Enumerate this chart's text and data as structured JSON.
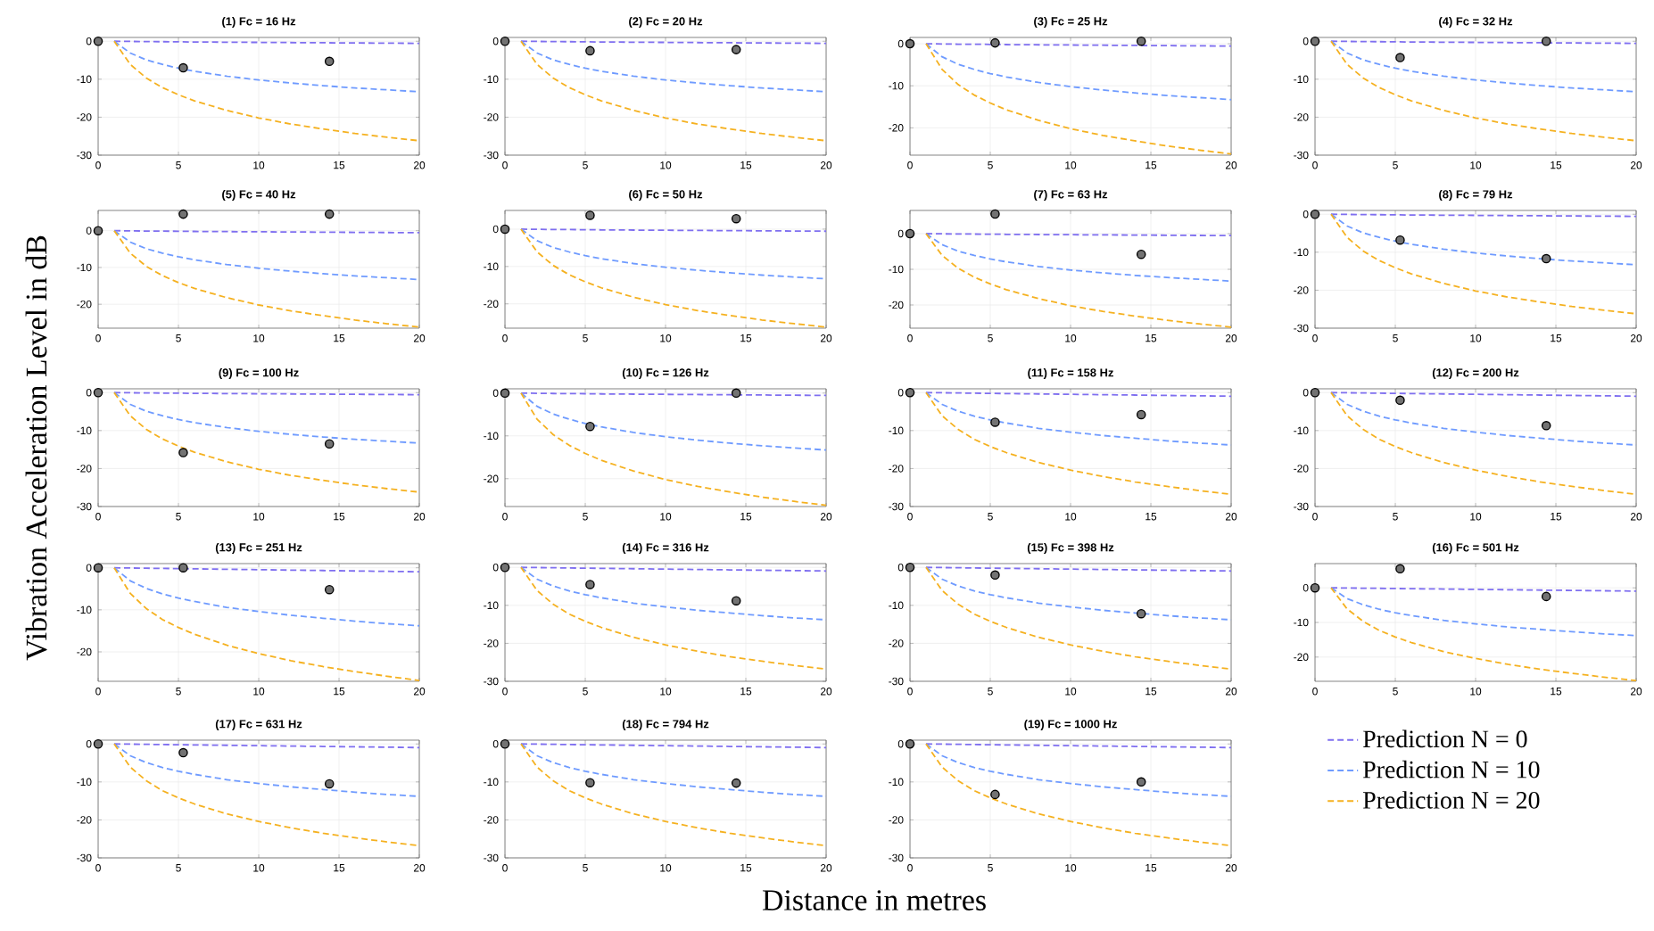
{
  "chart_data": [
    {
      "type": "line",
      "title": "(1) Fc = 16 Hz",
      "xlim": [
        0,
        20
      ],
      "xticks": [
        0,
        5,
        10,
        15,
        20
      ],
      "ylim": [
        -30,
        1
      ],
      "yticks": [
        -30,
        -20,
        -10,
        0
      ],
      "grid": true,
      "x": [
        1,
        2,
        3,
        4,
        5,
        6,
        8,
        10,
        12,
        14,
        16,
        18,
        20
      ],
      "series": [
        {
          "color": "#7f6ff0",
          "line_style": "dashed",
          "values": [
            0,
            -0.05,
            -0.1,
            -0.12,
            -0.15,
            -0.2,
            -0.25,
            -0.3,
            -0.35,
            -0.4,
            -0.45,
            -0.5,
            -0.55
          ]
        },
        {
          "color": "#6f9bff",
          "line_style": "dashed",
          "values": [
            0,
            -3.1,
            -4.9,
            -6.1,
            -7.1,
            -7.9,
            -9.2,
            -10.2,
            -11,
            -11.7,
            -12.3,
            -12.8,
            -13.3
          ]
        },
        {
          "color": "#f5b120",
          "line_style": "dashed",
          "values": [
            0,
            -6.1,
            -9.7,
            -12.2,
            -14.1,
            -15.7,
            -18.2,
            -20.2,
            -21.8,
            -23.1,
            -24.3,
            -25.3,
            -26.2
          ]
        },
        {
          "type": "scatter",
          "marker": "circle",
          "color": "#000000",
          "x": [
            0,
            5.3,
            14.4
          ],
          "values": [
            0,
            -7,
            -5.3
          ]
        }
      ]
    },
    {
      "type": "line",
      "title": "(2) Fc = 20 Hz",
      "xlim": [
        0,
        20
      ],
      "xticks": [
        0,
        5,
        10,
        15,
        20
      ],
      "ylim": [
        -30,
        1
      ],
      "yticks": [
        -30,
        -20,
        -10,
        0
      ],
      "grid": true,
      "x": [
        1,
        2,
        3,
        4,
        5,
        6,
        8,
        10,
        12,
        14,
        16,
        18,
        20
      ],
      "series": [
        {
          "color": "#7f6ff0",
          "line_style": "dashed",
          "values": [
            0,
            -0.05,
            -0.1,
            -0.12,
            -0.15,
            -0.2,
            -0.25,
            -0.3,
            -0.35,
            -0.4,
            -0.45,
            -0.5,
            -0.55
          ]
        },
        {
          "color": "#6f9bff",
          "line_style": "dashed",
          "values": [
            0,
            -3.1,
            -4.9,
            -6.1,
            -7.1,
            -7.9,
            -9.2,
            -10.2,
            -11,
            -11.7,
            -12.3,
            -12.8,
            -13.3
          ]
        },
        {
          "color": "#f5b120",
          "line_style": "dashed",
          "values": [
            0,
            -6.1,
            -9.7,
            -12.2,
            -14.1,
            -15.7,
            -18.2,
            -20.2,
            -21.8,
            -23.1,
            -24.3,
            -25.3,
            -26.2
          ]
        },
        {
          "type": "scatter",
          "marker": "circle",
          "color": "#000000",
          "x": [
            0,
            5.3,
            14.4
          ],
          "values": [
            0,
            -2.5,
            -2.2
          ]
        }
      ]
    },
    {
      "type": "line",
      "title": "(3) Fc = 25 Hz",
      "xlim": [
        0,
        20
      ],
      "xticks": [
        0,
        5,
        10,
        15,
        20
      ],
      "ylim": [
        -26.5,
        1.5
      ],
      "yticks": [
        -20,
        -10,
        0
      ],
      "grid": true,
      "x": [
        1,
        2,
        3,
        4,
        5,
        6,
        8,
        10,
        12,
        14,
        16,
        18,
        20
      ],
      "series": [
        {
          "color": "#7f6ff0",
          "line_style": "dashed",
          "values": [
            0,
            -0.05,
            -0.1,
            -0.12,
            -0.15,
            -0.2,
            -0.25,
            -0.3,
            -0.35,
            -0.4,
            -0.45,
            -0.5,
            -0.55
          ]
        },
        {
          "color": "#6f9bff",
          "line_style": "dashed",
          "values": [
            0,
            -3.1,
            -4.9,
            -6.1,
            -7.1,
            -7.9,
            -9.2,
            -10.2,
            -11,
            -11.7,
            -12.3,
            -12.8,
            -13.3
          ]
        },
        {
          "color": "#f5b120",
          "line_style": "dashed",
          "values": [
            0,
            -6.1,
            -9.7,
            -12.2,
            -14.1,
            -15.7,
            -18.2,
            -20.2,
            -21.8,
            -23.1,
            -24.3,
            -25.3,
            -26.2
          ]
        },
        {
          "type": "scatter",
          "marker": "circle",
          "color": "#000000",
          "x": [
            0,
            5.3,
            14.4
          ],
          "values": [
            0,
            0.2,
            0.6
          ]
        }
      ]
    },
    {
      "type": "line",
      "title": "(4) Fc = 32 Hz",
      "xlim": [
        0,
        20
      ],
      "xticks": [
        0,
        5,
        10,
        15,
        20
      ],
      "ylim": [
        -30,
        1
      ],
      "yticks": [
        -30,
        -20,
        -10,
        0
      ],
      "grid": true,
      "x": [
        1,
        2,
        3,
        4,
        5,
        6,
        8,
        10,
        12,
        14,
        16,
        18,
        20
      ],
      "series": [
        {
          "color": "#7f6ff0",
          "line_style": "dashed",
          "values": [
            0,
            -0.05,
            -0.1,
            -0.12,
            -0.15,
            -0.2,
            -0.25,
            -0.3,
            -0.35,
            -0.4,
            -0.45,
            -0.5,
            -0.55
          ]
        },
        {
          "color": "#6f9bff",
          "line_style": "dashed",
          "values": [
            0,
            -3.1,
            -4.9,
            -6.1,
            -7.1,
            -7.9,
            -9.2,
            -10.2,
            -11,
            -11.7,
            -12.3,
            -12.8,
            -13.3
          ]
        },
        {
          "color": "#f5b120",
          "line_style": "dashed",
          "values": [
            0,
            -6.1,
            -9.7,
            -12.2,
            -14.1,
            -15.7,
            -18.2,
            -20.2,
            -21.8,
            -23.1,
            -24.3,
            -25.3,
            -26.2
          ]
        },
        {
          "type": "scatter",
          "marker": "circle",
          "color": "#000000",
          "x": [
            0,
            5.3,
            14.4
          ],
          "values": [
            0,
            -4.3,
            0
          ]
        }
      ]
    },
    {
      "type": "line",
      "title": "(5) Fc = 40 Hz",
      "xlim": [
        0,
        20
      ],
      "xticks": [
        0,
        5,
        10,
        15,
        20
      ],
      "ylim": [
        -26.5,
        5.5
      ],
      "yticks": [
        -20,
        -10,
        0
      ],
      "grid": true,
      "x": [
        1,
        2,
        3,
        4,
        5,
        6,
        8,
        10,
        12,
        14,
        16,
        18,
        20
      ],
      "series": [
        {
          "color": "#7f6ff0",
          "line_style": "dashed",
          "values": [
            0,
            -0.05,
            -0.1,
            -0.12,
            -0.15,
            -0.2,
            -0.25,
            -0.3,
            -0.35,
            -0.4,
            -0.45,
            -0.5,
            -0.55
          ]
        },
        {
          "color": "#6f9bff",
          "line_style": "dashed",
          "values": [
            0,
            -3.1,
            -4.9,
            -6.1,
            -7.1,
            -7.9,
            -9.2,
            -10.2,
            -11,
            -11.7,
            -12.3,
            -12.8,
            -13.3
          ]
        },
        {
          "color": "#f5b120",
          "line_style": "dashed",
          "values": [
            0,
            -6.1,
            -9.7,
            -12.2,
            -14.1,
            -15.7,
            -18.2,
            -20.2,
            -21.8,
            -23.1,
            -24.3,
            -25.3,
            -26.2
          ]
        },
        {
          "type": "scatter",
          "marker": "circle",
          "color": "#000000",
          "x": [
            0,
            5.3,
            14.4
          ],
          "values": [
            0,
            4.5,
            4.5
          ]
        }
      ]
    },
    {
      "type": "line",
      "title": "(6) Fc = 50 Hz",
      "xlim": [
        0,
        20
      ],
      "xticks": [
        0,
        5,
        10,
        15,
        20
      ],
      "ylim": [
        -26.5,
        5
      ],
      "yticks": [
        -20,
        -10,
        0
      ],
      "grid": true,
      "x": [
        1,
        2,
        3,
        4,
        5,
        6,
        8,
        10,
        12,
        14,
        16,
        18,
        20
      ],
      "series": [
        {
          "color": "#7f6ff0",
          "line_style": "dashed",
          "values": [
            0,
            -0.05,
            -0.1,
            -0.12,
            -0.15,
            -0.2,
            -0.25,
            -0.3,
            -0.35,
            -0.4,
            -0.45,
            -0.5,
            -0.55
          ]
        },
        {
          "color": "#6f9bff",
          "line_style": "dashed",
          "values": [
            0,
            -3.1,
            -4.9,
            -6.1,
            -7.1,
            -7.9,
            -9.2,
            -10.2,
            -11,
            -11.7,
            -12.3,
            -12.8,
            -13.3
          ]
        },
        {
          "color": "#f5b120",
          "line_style": "dashed",
          "values": [
            0,
            -6.1,
            -9.7,
            -12.2,
            -14.1,
            -15.7,
            -18.2,
            -20.2,
            -21.8,
            -23.1,
            -24.3,
            -25.3,
            -26.2
          ]
        },
        {
          "type": "scatter",
          "marker": "circle",
          "color": "#000000",
          "x": [
            0,
            5.3,
            14.4
          ],
          "values": [
            0,
            3.7,
            2.8
          ]
        }
      ]
    },
    {
      "type": "line",
      "title": "(7) Fc = 63 Hz",
      "xlim": [
        0,
        20
      ],
      "xticks": [
        0,
        5,
        10,
        15,
        20
      ],
      "ylim": [
        -26.5,
        6.5
      ],
      "yticks": [
        -20,
        -10,
        0
      ],
      "grid": true,
      "x": [
        1,
        2,
        3,
        4,
        5,
        6,
        8,
        10,
        12,
        14,
        16,
        18,
        20
      ],
      "series": [
        {
          "color": "#7f6ff0",
          "line_style": "dashed",
          "values": [
            0,
            -0.05,
            -0.1,
            -0.12,
            -0.15,
            -0.2,
            -0.25,
            -0.3,
            -0.35,
            -0.4,
            -0.45,
            -0.5,
            -0.55
          ]
        },
        {
          "color": "#6f9bff",
          "line_style": "dashed",
          "values": [
            0,
            -3.1,
            -4.9,
            -6.1,
            -7.1,
            -7.9,
            -9.2,
            -10.2,
            -11,
            -11.7,
            -12.3,
            -12.8,
            -13.3
          ]
        },
        {
          "color": "#f5b120",
          "line_style": "dashed",
          "values": [
            0,
            -6.1,
            -9.7,
            -12.2,
            -14.1,
            -15.7,
            -18.2,
            -20.2,
            -21.8,
            -23.1,
            -24.3,
            -25.3,
            -26.2
          ]
        },
        {
          "type": "scatter",
          "marker": "circle",
          "color": "#000000",
          "x": [
            0,
            5.3,
            14.4
          ],
          "values": [
            0,
            5.5,
            -5.8
          ]
        }
      ]
    },
    {
      "type": "line",
      "title": "(8) Fc = 79 Hz",
      "xlim": [
        0,
        20
      ],
      "xticks": [
        0,
        5,
        10,
        15,
        20
      ],
      "ylim": [
        -30,
        1
      ],
      "yticks": [
        -30,
        -20,
        -10,
        0
      ],
      "grid": true,
      "x": [
        1,
        2,
        3,
        4,
        5,
        6,
        8,
        10,
        12,
        14,
        16,
        18,
        20
      ],
      "series": [
        {
          "color": "#7f6ff0",
          "line_style": "dashed",
          "values": [
            0,
            -0.05,
            -0.1,
            -0.12,
            -0.15,
            -0.2,
            -0.25,
            -0.3,
            -0.35,
            -0.4,
            -0.45,
            -0.5,
            -0.55
          ]
        },
        {
          "color": "#6f9bff",
          "line_style": "dashed",
          "values": [
            0,
            -3.1,
            -4.9,
            -6.1,
            -7.1,
            -7.9,
            -9.2,
            -10.2,
            -11,
            -11.7,
            -12.3,
            -12.8,
            -13.3
          ]
        },
        {
          "color": "#f5b120",
          "line_style": "dashed",
          "values": [
            0,
            -6.1,
            -9.7,
            -12.2,
            -14.1,
            -15.7,
            -18.2,
            -20.2,
            -21.8,
            -23.1,
            -24.3,
            -25.3,
            -26.2
          ]
        },
        {
          "type": "scatter",
          "marker": "circle",
          "color": "#000000",
          "x": [
            0,
            5.3,
            14.4
          ],
          "values": [
            0,
            -6.8,
            -11.7
          ]
        }
      ]
    },
    {
      "type": "line",
      "title": "(9) Fc = 100 Hz",
      "ylabel": "Vibration Acceleration Level in dB",
      "xlim": [
        0,
        20
      ],
      "xticks": [
        0,
        5,
        10,
        15,
        20
      ],
      "ylim": [
        -30,
        1
      ],
      "yticks": [
        -30,
        -20,
        -10,
        0
      ],
      "grid": true,
      "x": [
        1,
        2,
        3,
        4,
        5,
        6,
        8,
        10,
        12,
        14,
        16,
        18,
        20
      ],
      "series": [
        {
          "color": "#7f6ff0",
          "line_style": "dashed",
          "values": [
            0,
            -0.05,
            -0.1,
            -0.12,
            -0.15,
            -0.2,
            -0.25,
            -0.3,
            -0.35,
            -0.4,
            -0.45,
            -0.5,
            -0.55
          ]
        },
        {
          "color": "#6f9bff",
          "line_style": "dashed",
          "values": [
            0,
            -3.1,
            -4.9,
            -6.1,
            -7.1,
            -7.9,
            -9.2,
            -10.2,
            -11,
            -11.7,
            -12.3,
            -12.8,
            -13.3
          ]
        },
        {
          "color": "#f5b120",
          "line_style": "dashed",
          "values": [
            0,
            -6.1,
            -9.7,
            -12.2,
            -14.1,
            -15.7,
            -18.2,
            -20.2,
            -21.8,
            -23.1,
            -24.3,
            -25.3,
            -26.2
          ]
        },
        {
          "type": "scatter",
          "marker": "circle",
          "color": "#000000",
          "x": [
            0,
            5.3,
            14.4
          ],
          "values": [
            0,
            -15.8,
            -13.5
          ]
        }
      ]
    },
    {
      "type": "line",
      "title": "(10) Fc = 126 Hz",
      "xlim": [
        0,
        20
      ],
      "xticks": [
        0,
        5,
        10,
        15,
        20
      ],
      "ylim": [
        -26.5,
        1
      ],
      "yticks": [
        -20,
        -10,
        0
      ],
      "grid": true,
      "x": [
        1,
        2,
        3,
        4,
        5,
        6,
        8,
        10,
        12,
        14,
        16,
        18,
        20
      ],
      "series": [
        {
          "color": "#7f6ff0",
          "line_style": "dashed",
          "values": [
            0,
            -0.05,
            -0.1,
            -0.12,
            -0.15,
            -0.2,
            -0.25,
            -0.3,
            -0.35,
            -0.4,
            -0.45,
            -0.5,
            -0.55
          ]
        },
        {
          "color": "#6f9bff",
          "line_style": "dashed",
          "values": [
            0,
            -3.1,
            -4.9,
            -6.1,
            -7.1,
            -7.9,
            -9.2,
            -10.2,
            -11,
            -11.7,
            -12.3,
            -12.8,
            -13.3
          ]
        },
        {
          "color": "#f5b120",
          "line_style": "dashed",
          "values": [
            0,
            -6.1,
            -9.7,
            -12.2,
            -14.1,
            -15.7,
            -18.2,
            -20.2,
            -21.8,
            -23.1,
            -24.3,
            -25.3,
            -26.2
          ]
        },
        {
          "type": "scatter",
          "marker": "circle",
          "color": "#000000",
          "x": [
            0,
            5.3,
            14.4
          ],
          "values": [
            0,
            -7.8,
            0
          ]
        }
      ]
    },
    {
      "type": "line",
      "title": "(11) Fc = 158 Hz",
      "xlim": [
        0,
        20
      ],
      "xticks": [
        0,
        5,
        10,
        15,
        20
      ],
      "ylim": [
        -30,
        1
      ],
      "yticks": [
        -30,
        -20,
        -10,
        0
      ],
      "grid": true,
      "x": [
        1,
        2,
        3,
        4,
        5,
        6,
        8,
        10,
        12,
        14,
        16,
        18,
        20
      ],
      "series": [
        {
          "color": "#7f6ff0",
          "line_style": "dashed",
          "values": [
            0,
            -0.05,
            -0.1,
            -0.15,
            -0.2,
            -0.25,
            -0.35,
            -0.45,
            -0.55,
            -0.65,
            -0.75,
            -0.85,
            -0.95
          ]
        },
        {
          "color": "#6f9bff",
          "line_style": "dashed",
          "values": [
            0,
            -3.1,
            -4.9,
            -6.2,
            -7.2,
            -8,
            -9.4,
            -10.4,
            -11.3,
            -12,
            -12.7,
            -13.3,
            -13.8
          ]
        },
        {
          "color": "#f5b120",
          "line_style": "dashed",
          "values": [
            0,
            -6.1,
            -9.7,
            -12.3,
            -14.2,
            -15.8,
            -18.4,
            -20.4,
            -22.1,
            -23.5,
            -24.7,
            -25.8,
            -26.8
          ]
        },
        {
          "type": "scatter",
          "marker": "circle",
          "color": "#000000",
          "x": [
            0,
            5.3,
            14.4
          ],
          "values": [
            0,
            -7.8,
            -5.8
          ]
        }
      ]
    },
    {
      "type": "line",
      "title": "(12) Fc = 200 Hz",
      "xlim": [
        0,
        20
      ],
      "xticks": [
        0,
        5,
        10,
        15,
        20
      ],
      "ylim": [
        -30,
        1
      ],
      "yticks": [
        -30,
        -20,
        -10,
        0
      ],
      "grid": true,
      "x": [
        1,
        2,
        3,
        4,
        5,
        6,
        8,
        10,
        12,
        14,
        16,
        18,
        20
      ],
      "series": [
        {
          "color": "#7f6ff0",
          "line_style": "dashed",
          "values": [
            0,
            -0.05,
            -0.1,
            -0.15,
            -0.2,
            -0.25,
            -0.35,
            -0.45,
            -0.55,
            -0.65,
            -0.75,
            -0.85,
            -0.95
          ]
        },
        {
          "color": "#6f9bff",
          "line_style": "dashed",
          "values": [
            0,
            -3.1,
            -4.9,
            -6.2,
            -7.2,
            -8,
            -9.4,
            -10.4,
            -11.3,
            -12,
            -12.7,
            -13.3,
            -13.8
          ]
        },
        {
          "color": "#f5b120",
          "line_style": "dashed",
          "values": [
            0,
            -6.1,
            -9.7,
            -12.3,
            -14.2,
            -15.8,
            -18.4,
            -20.4,
            -22.1,
            -23.5,
            -24.7,
            -25.8,
            -26.8
          ]
        },
        {
          "type": "scatter",
          "marker": "circle",
          "color": "#000000",
          "x": [
            0,
            5.3,
            14.4
          ],
          "values": [
            0,
            -2,
            -8.7
          ]
        }
      ]
    },
    {
      "type": "line",
      "title": "(13) Fc = 251 Hz",
      "xlim": [
        0,
        20
      ],
      "xticks": [
        0,
        5,
        10,
        15,
        20
      ],
      "ylim": [
        -27,
        1
      ],
      "yticks": [
        -20,
        -10,
        0
      ],
      "grid": true,
      "x": [
        1,
        2,
        3,
        4,
        5,
        6,
        8,
        10,
        12,
        14,
        16,
        18,
        20
      ],
      "series": [
        {
          "color": "#7f6ff0",
          "line_style": "dashed",
          "values": [
            0,
            -0.05,
            -0.1,
            -0.15,
            -0.2,
            -0.25,
            -0.35,
            -0.45,
            -0.55,
            -0.65,
            -0.75,
            -0.85,
            -0.95
          ]
        },
        {
          "color": "#6f9bff",
          "line_style": "dashed",
          "values": [
            0,
            -3.1,
            -4.9,
            -6.2,
            -7.2,
            -8,
            -9.4,
            -10.4,
            -11.3,
            -12,
            -12.7,
            -13.3,
            -13.8
          ]
        },
        {
          "color": "#f5b120",
          "line_style": "dashed",
          "values": [
            0,
            -6.1,
            -9.7,
            -12.3,
            -14.2,
            -15.8,
            -18.4,
            -20.4,
            -22.1,
            -23.5,
            -24.7,
            -25.8,
            -26.8
          ]
        },
        {
          "type": "scatter",
          "marker": "circle",
          "color": "#000000",
          "x": [
            0,
            5.3,
            14.4
          ],
          "values": [
            0,
            0,
            -5.2
          ]
        }
      ]
    },
    {
      "type": "line",
      "title": "(14) Fc = 316 Hz",
      "xlim": [
        0,
        20
      ],
      "xticks": [
        0,
        5,
        10,
        15,
        20
      ],
      "ylim": [
        -30,
        1
      ],
      "yticks": [
        -30,
        -20,
        -10,
        0
      ],
      "grid": true,
      "x": [
        1,
        2,
        3,
        4,
        5,
        6,
        8,
        10,
        12,
        14,
        16,
        18,
        20
      ],
      "series": [
        {
          "color": "#7f6ff0",
          "line_style": "dashed",
          "values": [
            0,
            -0.05,
            -0.1,
            -0.15,
            -0.2,
            -0.25,
            -0.35,
            -0.45,
            -0.55,
            -0.65,
            -0.75,
            -0.85,
            -0.95
          ]
        },
        {
          "color": "#6f9bff",
          "line_style": "dashed",
          "values": [
            0,
            -3.1,
            -4.9,
            -6.2,
            -7.2,
            -8,
            -9.4,
            -10.4,
            -11.3,
            -12,
            -12.7,
            -13.3,
            -13.8
          ]
        },
        {
          "color": "#f5b120",
          "line_style": "dashed",
          "values": [
            0,
            -6.1,
            -9.7,
            -12.3,
            -14.2,
            -15.8,
            -18.4,
            -20.4,
            -22.1,
            -23.5,
            -24.7,
            -25.8,
            -26.8
          ]
        },
        {
          "type": "scatter",
          "marker": "circle",
          "color": "#000000",
          "x": [
            0,
            5.3,
            14.4
          ],
          "values": [
            0,
            -4.5,
            -8.8
          ]
        }
      ]
    },
    {
      "type": "line",
      "title": "(15) Fc = 398 Hz",
      "xlim": [
        0,
        20
      ],
      "xticks": [
        0,
        5,
        10,
        15,
        20
      ],
      "ylim": [
        -30,
        1
      ],
      "yticks": [
        -30,
        -20,
        -10,
        0
      ],
      "grid": true,
      "x": [
        1,
        2,
        3,
        4,
        5,
        6,
        8,
        10,
        12,
        14,
        16,
        18,
        20
      ],
      "series": [
        {
          "color": "#7f6ff0",
          "line_style": "dashed",
          "values": [
            0,
            -0.05,
            -0.1,
            -0.15,
            -0.2,
            -0.25,
            -0.35,
            -0.45,
            -0.55,
            -0.65,
            -0.75,
            -0.85,
            -0.95
          ]
        },
        {
          "color": "#6f9bff",
          "line_style": "dashed",
          "values": [
            0,
            -3.1,
            -4.9,
            -6.2,
            -7.2,
            -8,
            -9.4,
            -10.4,
            -11.3,
            -12,
            -12.7,
            -13.3,
            -13.8
          ]
        },
        {
          "color": "#f5b120",
          "line_style": "dashed",
          "values": [
            0,
            -6.1,
            -9.7,
            -12.3,
            -14.2,
            -15.8,
            -18.4,
            -20.4,
            -22.1,
            -23.5,
            -24.7,
            -25.8,
            -26.8
          ]
        },
        {
          "type": "scatter",
          "marker": "circle",
          "color": "#000000",
          "x": [
            0,
            5.3,
            14.4
          ],
          "values": [
            0,
            -2,
            -12.2
          ]
        }
      ]
    },
    {
      "type": "line",
      "title": "(16) Fc = 501 Hz",
      "xlim": [
        0,
        20
      ],
      "xticks": [
        0,
        5,
        10,
        15,
        20
      ],
      "ylim": [
        -27,
        7
      ],
      "yticks": [
        -20,
        -10,
        0
      ],
      "grid": true,
      "x": [
        1,
        2,
        3,
        4,
        5,
        6,
        8,
        10,
        12,
        14,
        16,
        18,
        20
      ],
      "series": [
        {
          "color": "#7f6ff0",
          "line_style": "dashed",
          "values": [
            0,
            -0.05,
            -0.1,
            -0.15,
            -0.2,
            -0.25,
            -0.35,
            -0.45,
            -0.55,
            -0.65,
            -0.75,
            -0.85,
            -0.95
          ]
        },
        {
          "color": "#6f9bff",
          "line_style": "dashed",
          "values": [
            0,
            -3.1,
            -4.9,
            -6.2,
            -7.2,
            -8,
            -9.4,
            -10.4,
            -11.3,
            -12,
            -12.7,
            -13.3,
            -13.8
          ]
        },
        {
          "color": "#f5b120",
          "line_style": "dashed",
          "values": [
            0,
            -6.1,
            -9.7,
            -12.3,
            -14.2,
            -15.8,
            -18.4,
            -20.4,
            -22.1,
            -23.5,
            -24.7,
            -25.8,
            -26.8
          ]
        },
        {
          "type": "scatter",
          "marker": "circle",
          "color": "#000000",
          "x": [
            0,
            5.3,
            14.4
          ],
          "values": [
            0,
            5.5,
            -2.5
          ]
        }
      ]
    },
    {
      "type": "line",
      "title": "(17) Fc = 631 Hz",
      "xlim": [
        0,
        20
      ],
      "xticks": [
        0,
        5,
        10,
        15,
        20
      ],
      "ylim": [
        -30,
        1
      ],
      "yticks": [
        -30,
        -20,
        -10,
        0
      ],
      "grid": true,
      "x": [
        1,
        2,
        3,
        4,
        5,
        6,
        8,
        10,
        12,
        14,
        16,
        18,
        20
      ],
      "series": [
        {
          "color": "#7f6ff0",
          "line_style": "dashed",
          "values": [
            0,
            -0.05,
            -0.1,
            -0.15,
            -0.2,
            -0.25,
            -0.35,
            -0.45,
            -0.55,
            -0.65,
            -0.75,
            -0.85,
            -0.95
          ]
        },
        {
          "color": "#6f9bff",
          "line_style": "dashed",
          "values": [
            0,
            -3.1,
            -4.9,
            -6.2,
            -7.2,
            -8,
            -9.4,
            -10.4,
            -11.3,
            -12,
            -12.7,
            -13.3,
            -13.8
          ]
        },
        {
          "color": "#f5b120",
          "line_style": "dashed",
          "values": [
            0,
            -6.1,
            -9.7,
            -12.3,
            -14.2,
            -15.8,
            -18.4,
            -20.4,
            -22.1,
            -23.5,
            -24.7,
            -25.8,
            -26.8
          ]
        },
        {
          "type": "scatter",
          "marker": "circle",
          "color": "#000000",
          "x": [
            0,
            5.3,
            14.4
          ],
          "values": [
            0,
            -2.3,
            -10.5
          ]
        }
      ]
    },
    {
      "type": "line",
      "title": "(18) Fc = 794 Hz",
      "xlabel": "Distance in metres",
      "xlim": [
        0,
        20
      ],
      "xticks": [
        0,
        5,
        10,
        15,
        20
      ],
      "ylim": [
        -30,
        1
      ],
      "yticks": [
        -30,
        -20,
        -10,
        0
      ],
      "grid": true,
      "x": [
        1,
        2,
        3,
        4,
        5,
        6,
        8,
        10,
        12,
        14,
        16,
        18,
        20
      ],
      "series": [
        {
          "color": "#7f6ff0",
          "line_style": "dashed",
          "values": [
            0,
            -0.05,
            -0.1,
            -0.15,
            -0.2,
            -0.25,
            -0.35,
            -0.45,
            -0.55,
            -0.65,
            -0.75,
            -0.85,
            -0.95
          ]
        },
        {
          "color": "#6f9bff",
          "line_style": "dashed",
          "values": [
            0,
            -3.1,
            -4.9,
            -6.2,
            -7.2,
            -8,
            -9.4,
            -10.4,
            -11.3,
            -12,
            -12.7,
            -13.3,
            -13.8
          ]
        },
        {
          "color": "#f5b120",
          "line_style": "dashed",
          "values": [
            0,
            -6.1,
            -9.7,
            -12.3,
            -14.2,
            -15.8,
            -18.4,
            -20.4,
            -22.1,
            -23.5,
            -24.7,
            -25.8,
            -26.8
          ]
        },
        {
          "type": "scatter",
          "marker": "circle",
          "color": "#000000",
          "x": [
            0,
            5.3,
            14.4
          ],
          "values": [
            0,
            -10.2,
            -10.3
          ]
        }
      ]
    },
    {
      "type": "line",
      "title": "(19) Fc = 1000 Hz",
      "xlim": [
        0,
        20
      ],
      "xticks": [
        0,
        5,
        10,
        15,
        20
      ],
      "ylim": [
        -30,
        1
      ],
      "yticks": [
        -30,
        -20,
        -10,
        0
      ],
      "grid": true,
      "legend": "right",
      "x": [
        1,
        2,
        3,
        4,
        5,
        6,
        8,
        10,
        12,
        14,
        16,
        18,
        20
      ],
      "series": [
        {
          "name": "Prediction N = 0",
          "color": "#7f6ff0",
          "line_style": "dashed",
          "values": [
            0,
            -0.05,
            -0.1,
            -0.15,
            -0.2,
            -0.25,
            -0.35,
            -0.45,
            -0.55,
            -0.65,
            -0.75,
            -0.85,
            -0.95
          ]
        },
        {
          "name": "Prediction N = 10",
          "color": "#6f9bff",
          "line_style": "dashed",
          "values": [
            0,
            -3.1,
            -4.9,
            -6.2,
            -7.2,
            -8,
            -9.4,
            -10.4,
            -11.3,
            -12,
            -12.7,
            -13.3,
            -13.8
          ]
        },
        {
          "name": "Prediction N = 20",
          "color": "#f5b120",
          "line_style": "dashed",
          "values": [
            0,
            -6.1,
            -9.7,
            -12.3,
            -14.2,
            -15.8,
            -18.4,
            -20.4,
            -22.1,
            -23.5,
            -24.7,
            -25.8,
            -26.8
          ]
        },
        {
          "type": "scatter",
          "marker": "circle",
          "color": "#000000",
          "x": [
            0,
            5.3,
            14.4
          ],
          "values": [
            0,
            -13.3,
            -10
          ]
        }
      ]
    }
  ]
}
